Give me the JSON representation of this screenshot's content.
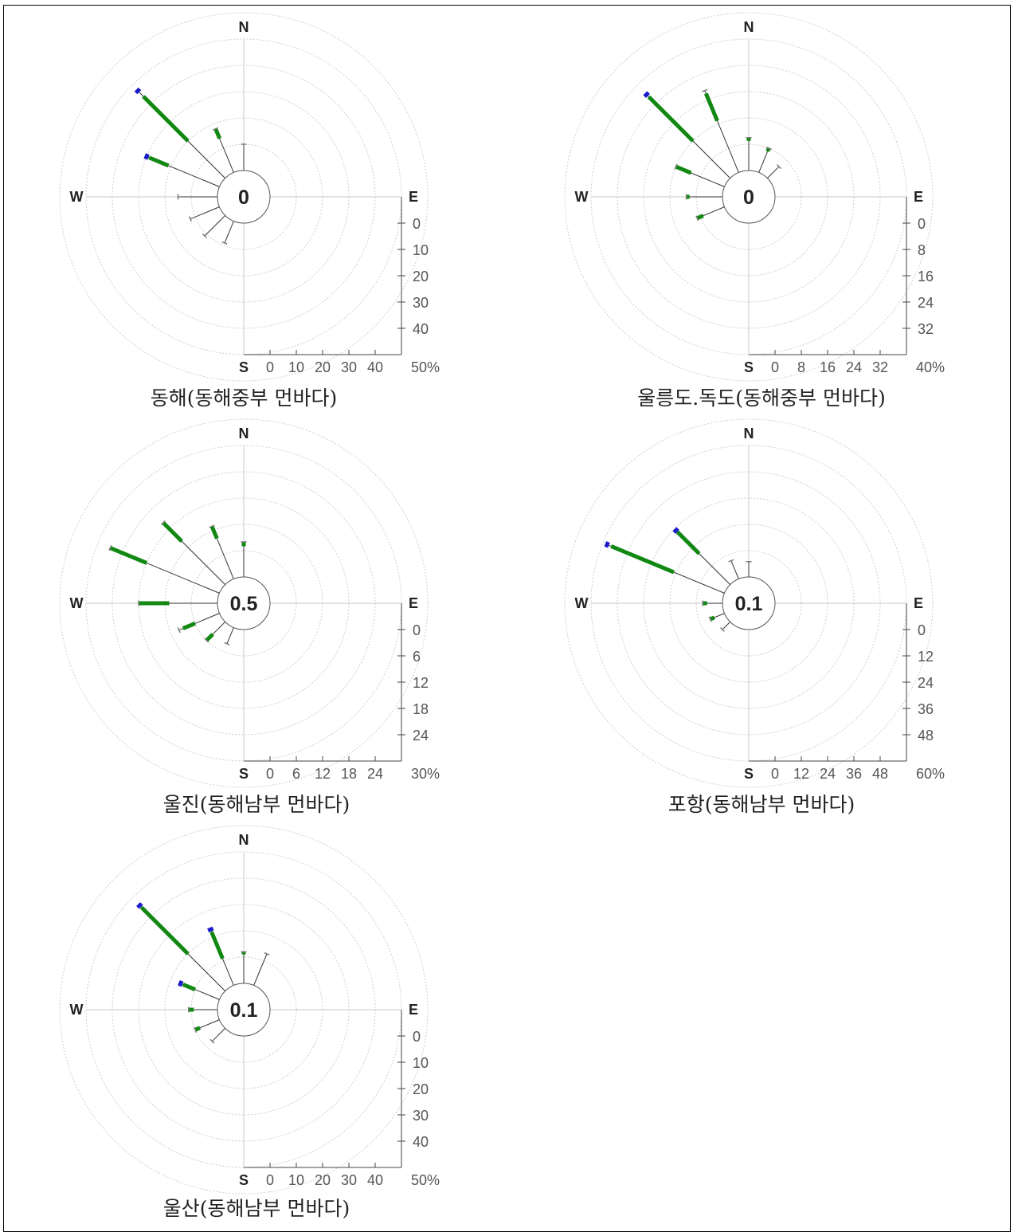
{
  "colors": {
    "ring": "#cfcfcf",
    "axis": "#c8c8c8",
    "spoke": "#333333",
    "low": "#7d7d7d",
    "mid": "#118811",
    "high": "#1a1acc",
    "text": "#222222"
  },
  "chart_data": [
    {
      "type": "windrose",
      "title": "동해(동해중부 먼바다)",
      "center_label": "0",
      "axis_max": 50,
      "ticks": [
        "0",
        "10",
        "20",
        "30",
        "40"
      ],
      "unit_label": "50%",
      "compass": [
        "N",
        "E",
        "S",
        "W"
      ],
      "petals": [
        {
          "dir": 315,
          "value": 47,
          "mid_from": 20,
          "mid_to": 44,
          "cap": true
        },
        {
          "dir": 292.5,
          "value": 30,
          "mid_from": 21,
          "mid_to": 29,
          "cap": true
        },
        {
          "dir": 337.5,
          "value": 18,
          "mid_from": 14,
          "mid_to": 18,
          "cap": false
        },
        {
          "dir": 0,
          "value": 10,
          "mid_from": 0,
          "mid_to": 0,
          "cap": false
        },
        {
          "dir": 270,
          "value": 15,
          "mid_from": 0,
          "mid_to": 0,
          "cap": false
        },
        {
          "dir": 247.5,
          "value": 12,
          "mid_from": 0,
          "mid_to": 0,
          "cap": false
        },
        {
          "dir": 225,
          "value": 11,
          "mid_from": 0,
          "mid_to": 0,
          "cap": false
        },
        {
          "dir": 202.5,
          "value": 9,
          "mid_from": 0,
          "mid_to": 0,
          "cap": false
        }
      ]
    },
    {
      "type": "windrose",
      "title": "울릉도.독도(동해중부 먼바다)",
      "center_label": "0",
      "axis_max": 40,
      "ticks": [
        "0",
        "8",
        "16",
        "24",
        "32"
      ],
      "unit_label": "40%",
      "compass": [
        "N",
        "E",
        "S",
        "W"
      ],
      "petals": [
        {
          "dir": 315,
          "value": 36,
          "mid_from": 16,
          "mid_to": 35,
          "cap": true
        },
        {
          "dir": 337.5,
          "value": 27,
          "mid_from": 17,
          "mid_to": 26,
          "cap": false
        },
        {
          "dir": 292.5,
          "value": 16,
          "mid_from": 11,
          "mid_to": 16,
          "cap": false
        },
        {
          "dir": 0,
          "value": 10,
          "mid_from": 9,
          "mid_to": 10,
          "cap": false
        },
        {
          "dir": 22.5,
          "value": 8,
          "mid_from": 7,
          "mid_to": 8,
          "cap": false
        },
        {
          "dir": 270,
          "value": 11,
          "mid_from": 10,
          "mid_to": 11,
          "cap": false
        },
        {
          "dir": 247.5,
          "value": 9,
          "mid_from": 7,
          "mid_to": 9,
          "cap": false
        },
        {
          "dir": 45,
          "value": 5,
          "mid_from": 0,
          "mid_to": 0,
          "cap": false
        }
      ]
    },
    {
      "type": "windrose",
      "title": "울진(동해남부 먼바다)",
      "center_label": "0.5",
      "axis_max": 30,
      "ticks": [
        "0",
        "6",
        "12",
        "18",
        "24"
      ],
      "unit_label": "30%",
      "compass": [
        "N",
        "E",
        "S",
        "W"
      ],
      "petals": [
        {
          "dir": 292.5,
          "value": 27,
          "mid_from": 18,
          "mid_to": 27,
          "cap": false
        },
        {
          "dir": 315,
          "value": 20,
          "mid_from": 14,
          "mid_to": 20,
          "cap": false
        },
        {
          "dir": 337.5,
          "value": 13,
          "mid_from": 10,
          "mid_to": 13,
          "cap": false
        },
        {
          "dir": 270,
          "value": 18,
          "mid_from": 11,
          "mid_to": 18,
          "cap": false
        },
        {
          "dir": 247.5,
          "value": 10,
          "mid_from": 6,
          "mid_to": 9,
          "cap": false
        },
        {
          "dir": 225,
          "value": 6,
          "mid_from": 4,
          "mid_to": 6,
          "cap": false
        },
        {
          "dir": 0,
          "value": 8,
          "mid_from": 7,
          "mid_to": 8,
          "cap": false
        },
        {
          "dir": 202.5,
          "value": 4,
          "mid_from": 0,
          "mid_to": 0,
          "cap": false
        }
      ]
    },
    {
      "type": "windrose",
      "title": "포항(동해남부 먼바다)",
      "center_label": "0.1",
      "axis_max": 60,
      "ticks": [
        "0",
        "12",
        "24",
        "36",
        "48"
      ],
      "unit_label": "60%",
      "compass": [
        "N",
        "E",
        "S",
        "W"
      ],
      "petals": [
        {
          "dir": 292.5,
          "value": 58,
          "mid_from": 25,
          "mid_to": 56,
          "cap": true
        },
        {
          "dir": 315,
          "value": 35,
          "mid_from": 20,
          "mid_to": 34,
          "cap": true
        },
        {
          "dir": 337.5,
          "value": 9,
          "mid_from": 0,
          "mid_to": 0,
          "cap": false
        },
        {
          "dir": 0,
          "value": 7,
          "mid_from": 0,
          "mid_to": 0,
          "cap": false
        },
        {
          "dir": 270,
          "value": 9,
          "mid_from": 7,
          "mid_to": 9,
          "cap": false
        },
        {
          "dir": 247.5,
          "value": 7,
          "mid_from": 5,
          "mid_to": 7,
          "cap": false
        },
        {
          "dir": 225,
          "value": 5,
          "mid_from": 0,
          "mid_to": 0,
          "cap": false
        }
      ]
    },
    {
      "type": "windrose",
      "title": "울산(동해남부 먼바다)",
      "center_label": "0.1",
      "axis_max": 50,
      "ticks": [
        "0",
        "10",
        "20",
        "30",
        "40"
      ],
      "unit_label": "50%",
      "compass": [
        "N",
        "E",
        "S",
        "W"
      ],
      "petals": [
        {
          "dir": 315,
          "value": 46,
          "mid_from": 20,
          "mid_to": 45,
          "cap": true
        },
        {
          "dir": 337.5,
          "value": 23,
          "mid_from": 11,
          "mid_to": 22,
          "cap": true
        },
        {
          "dir": 292.5,
          "value": 16,
          "mid_from": 10,
          "mid_to": 15,
          "cap": true
        },
        {
          "dir": 0,
          "value": 12,
          "mid_from": 11,
          "mid_to": 12,
          "cap": false
        },
        {
          "dir": 22.5,
          "value": 13,
          "mid_from": 0,
          "mid_to": 0,
          "cap": false
        },
        {
          "dir": 270,
          "value": 11,
          "mid_from": 9,
          "mid_to": 11,
          "cap": false
        },
        {
          "dir": 247.5,
          "value": 10,
          "mid_from": 8,
          "mid_to": 10,
          "cap": false
        },
        {
          "dir": 225,
          "value": 7,
          "mid_from": 0,
          "mid_to": 0,
          "cap": false
        }
      ]
    }
  ]
}
